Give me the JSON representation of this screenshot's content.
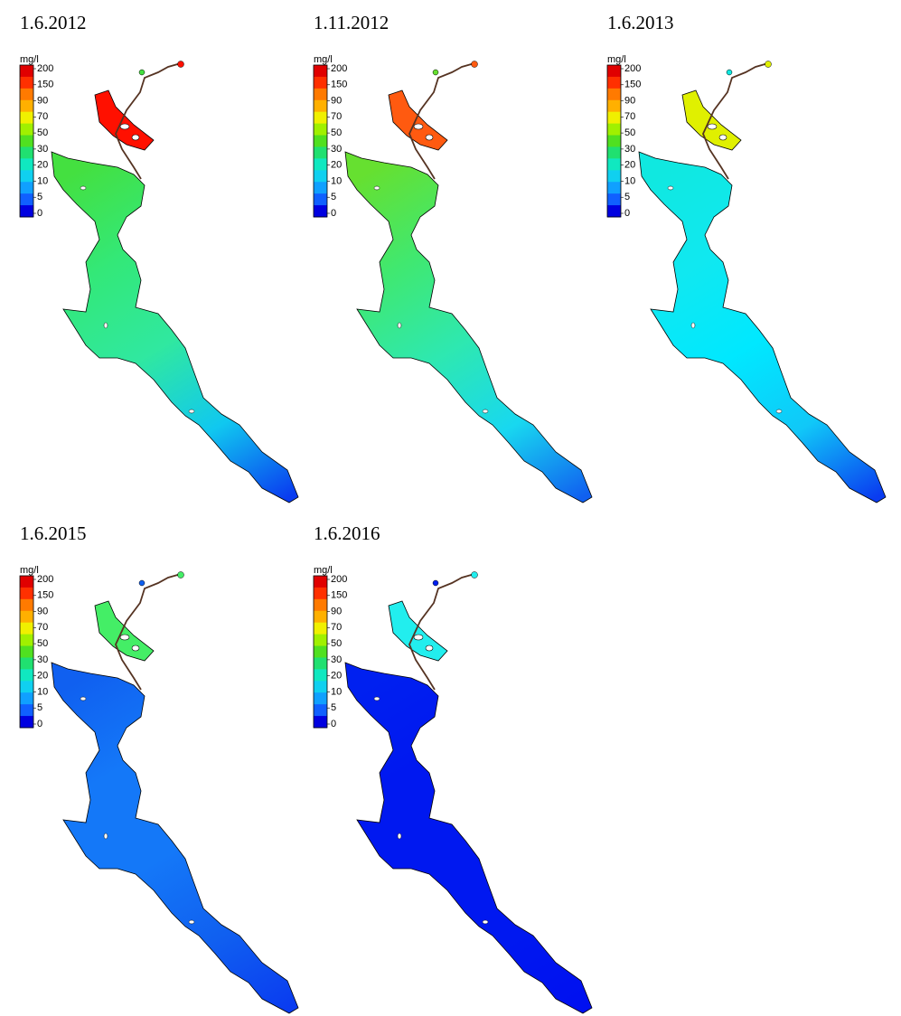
{
  "legend_colors": [
    "#e00000",
    "#ff3000",
    "#ff7a00",
    "#ffb000",
    "#f0f000",
    "#a0f000",
    "#50e020",
    "#20e070",
    "#10e8c0",
    "#10d0f0",
    "#10a0ff",
    "#1060ff",
    "#0000e0"
  ],
  "panels": [
    {
      "title": "1.6.2012",
      "legend": {
        "unit": "mg/l",
        "labels": [
          "200",
          "150",
          "90",
          "70",
          "50",
          "30",
          "20",
          "10",
          "5",
          "0"
        ]
      },
      "upper_color": "#ff1000",
      "lake_colors": [
        "#44e040",
        "#33e878",
        "#30e8a0",
        "#10c8f0",
        "#0a3cf0"
      ]
    },
    {
      "title": "1.11.2012",
      "legend": {
        "unit": "mg/l",
        "labels": [
          "200",
          "150",
          "90",
          "70",
          "50",
          "30",
          "20",
          "10",
          "5",
          "0"
        ]
      },
      "upper_color": "#ff5a10",
      "lake_colors": [
        "#66e030",
        "#40e870",
        "#2ee8b0",
        "#18d8f0",
        "#1060f0"
      ]
    },
    {
      "title": "1.6.2013",
      "legend": {
        "unit": "mg/l",
        "labels": [
          "200",
          "150",
          "90",
          "70",
          "50",
          "30",
          "20",
          "10",
          "5",
          "0"
        ]
      },
      "upper_color": "#e0f000",
      "lake_colors": [
        "#10e8e0",
        "#10e8f0",
        "#00e8ff",
        "#10c8f8",
        "#0a3cf0"
      ]
    },
    {
      "title": "1.6.2015",
      "legend": {
        "unit": "mg/l",
        "labels": [
          "200",
          "150",
          "90",
          "70",
          "50",
          "30",
          "20",
          "10",
          "5",
          "0"
        ]
      },
      "upper_color": "#44ee66",
      "lake_colors": [
        "#1060f0",
        "#1478f8",
        "#1478f8",
        "#1060f0",
        "#0a3cf0"
      ]
    },
    {
      "title": "1.6.2016",
      "legend": {
        "unit": "mg/l",
        "labels": [
          "200",
          "150",
          "90",
          "70",
          "50",
          "30",
          "20",
          "10",
          "5",
          "0"
        ]
      },
      "upper_color": "#22eeee",
      "lake_colors": [
        "#0020f0",
        "#0018f0",
        "#0018f0",
        "#0018f0",
        "#0010f0"
      ]
    }
  ]
}
